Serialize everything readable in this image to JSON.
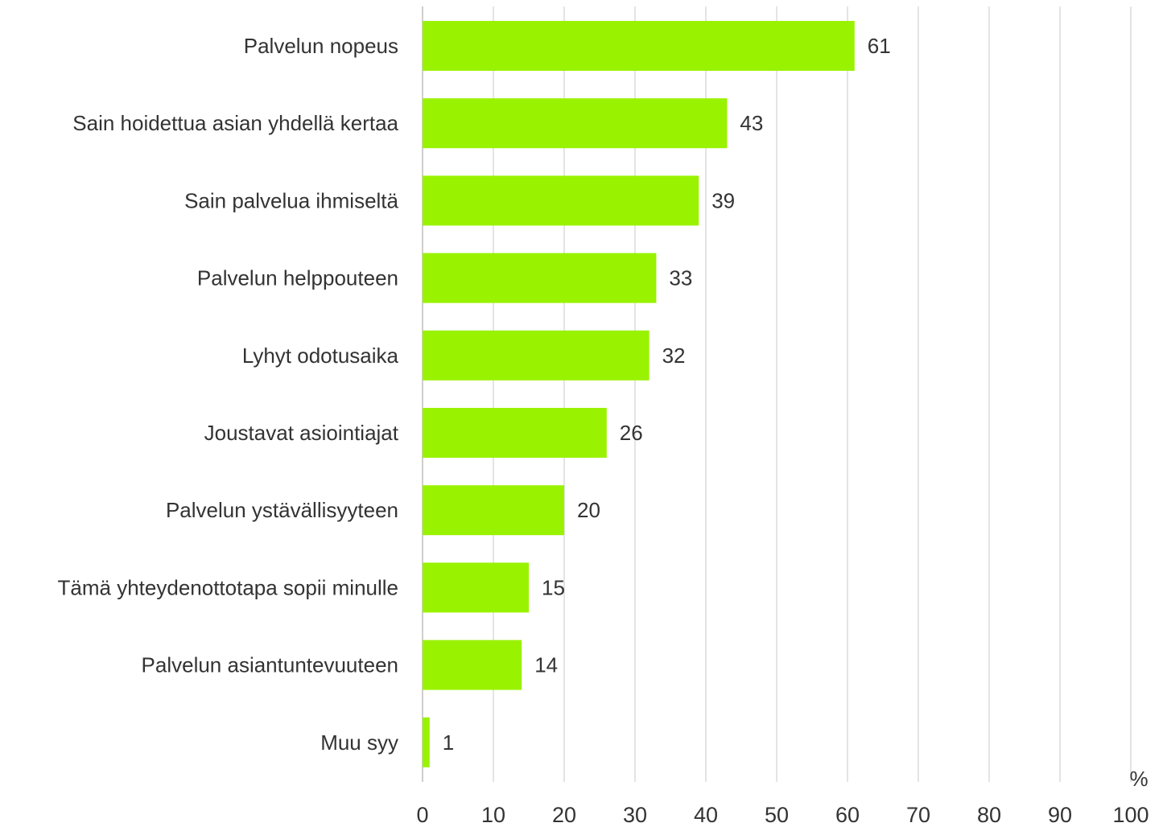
{
  "chart_data": {
    "type": "bar",
    "orientation": "horizontal",
    "categories": [
      "Palvelun nopeus",
      "Sain hoidettua asian yhdellä kertaa",
      "Sain palvelua ihmiseltä",
      "Palvelun helppouteen",
      "Lyhyt odotusaika",
      "Joustavat asiointiajat",
      "Palvelun ystävällisyyteen",
      "Tämä yhteydenottotapa sopii minulle",
      "Palvelun asiantuntevuuteen",
      "Muu syy"
    ],
    "values": [
      61,
      43,
      39,
      33,
      32,
      26,
      20,
      15,
      14,
      1
    ],
    "xlim": [
      0,
      100
    ],
    "xticks": [
      0,
      10,
      20,
      30,
      40,
      50,
      60,
      70,
      80,
      90,
      100
    ],
    "xunit": "%",
    "grid": "vertical",
    "data_labels": true,
    "bar_color": "#99f200",
    "text_color": "#333333",
    "grid_color": "#c8c8c8"
  }
}
